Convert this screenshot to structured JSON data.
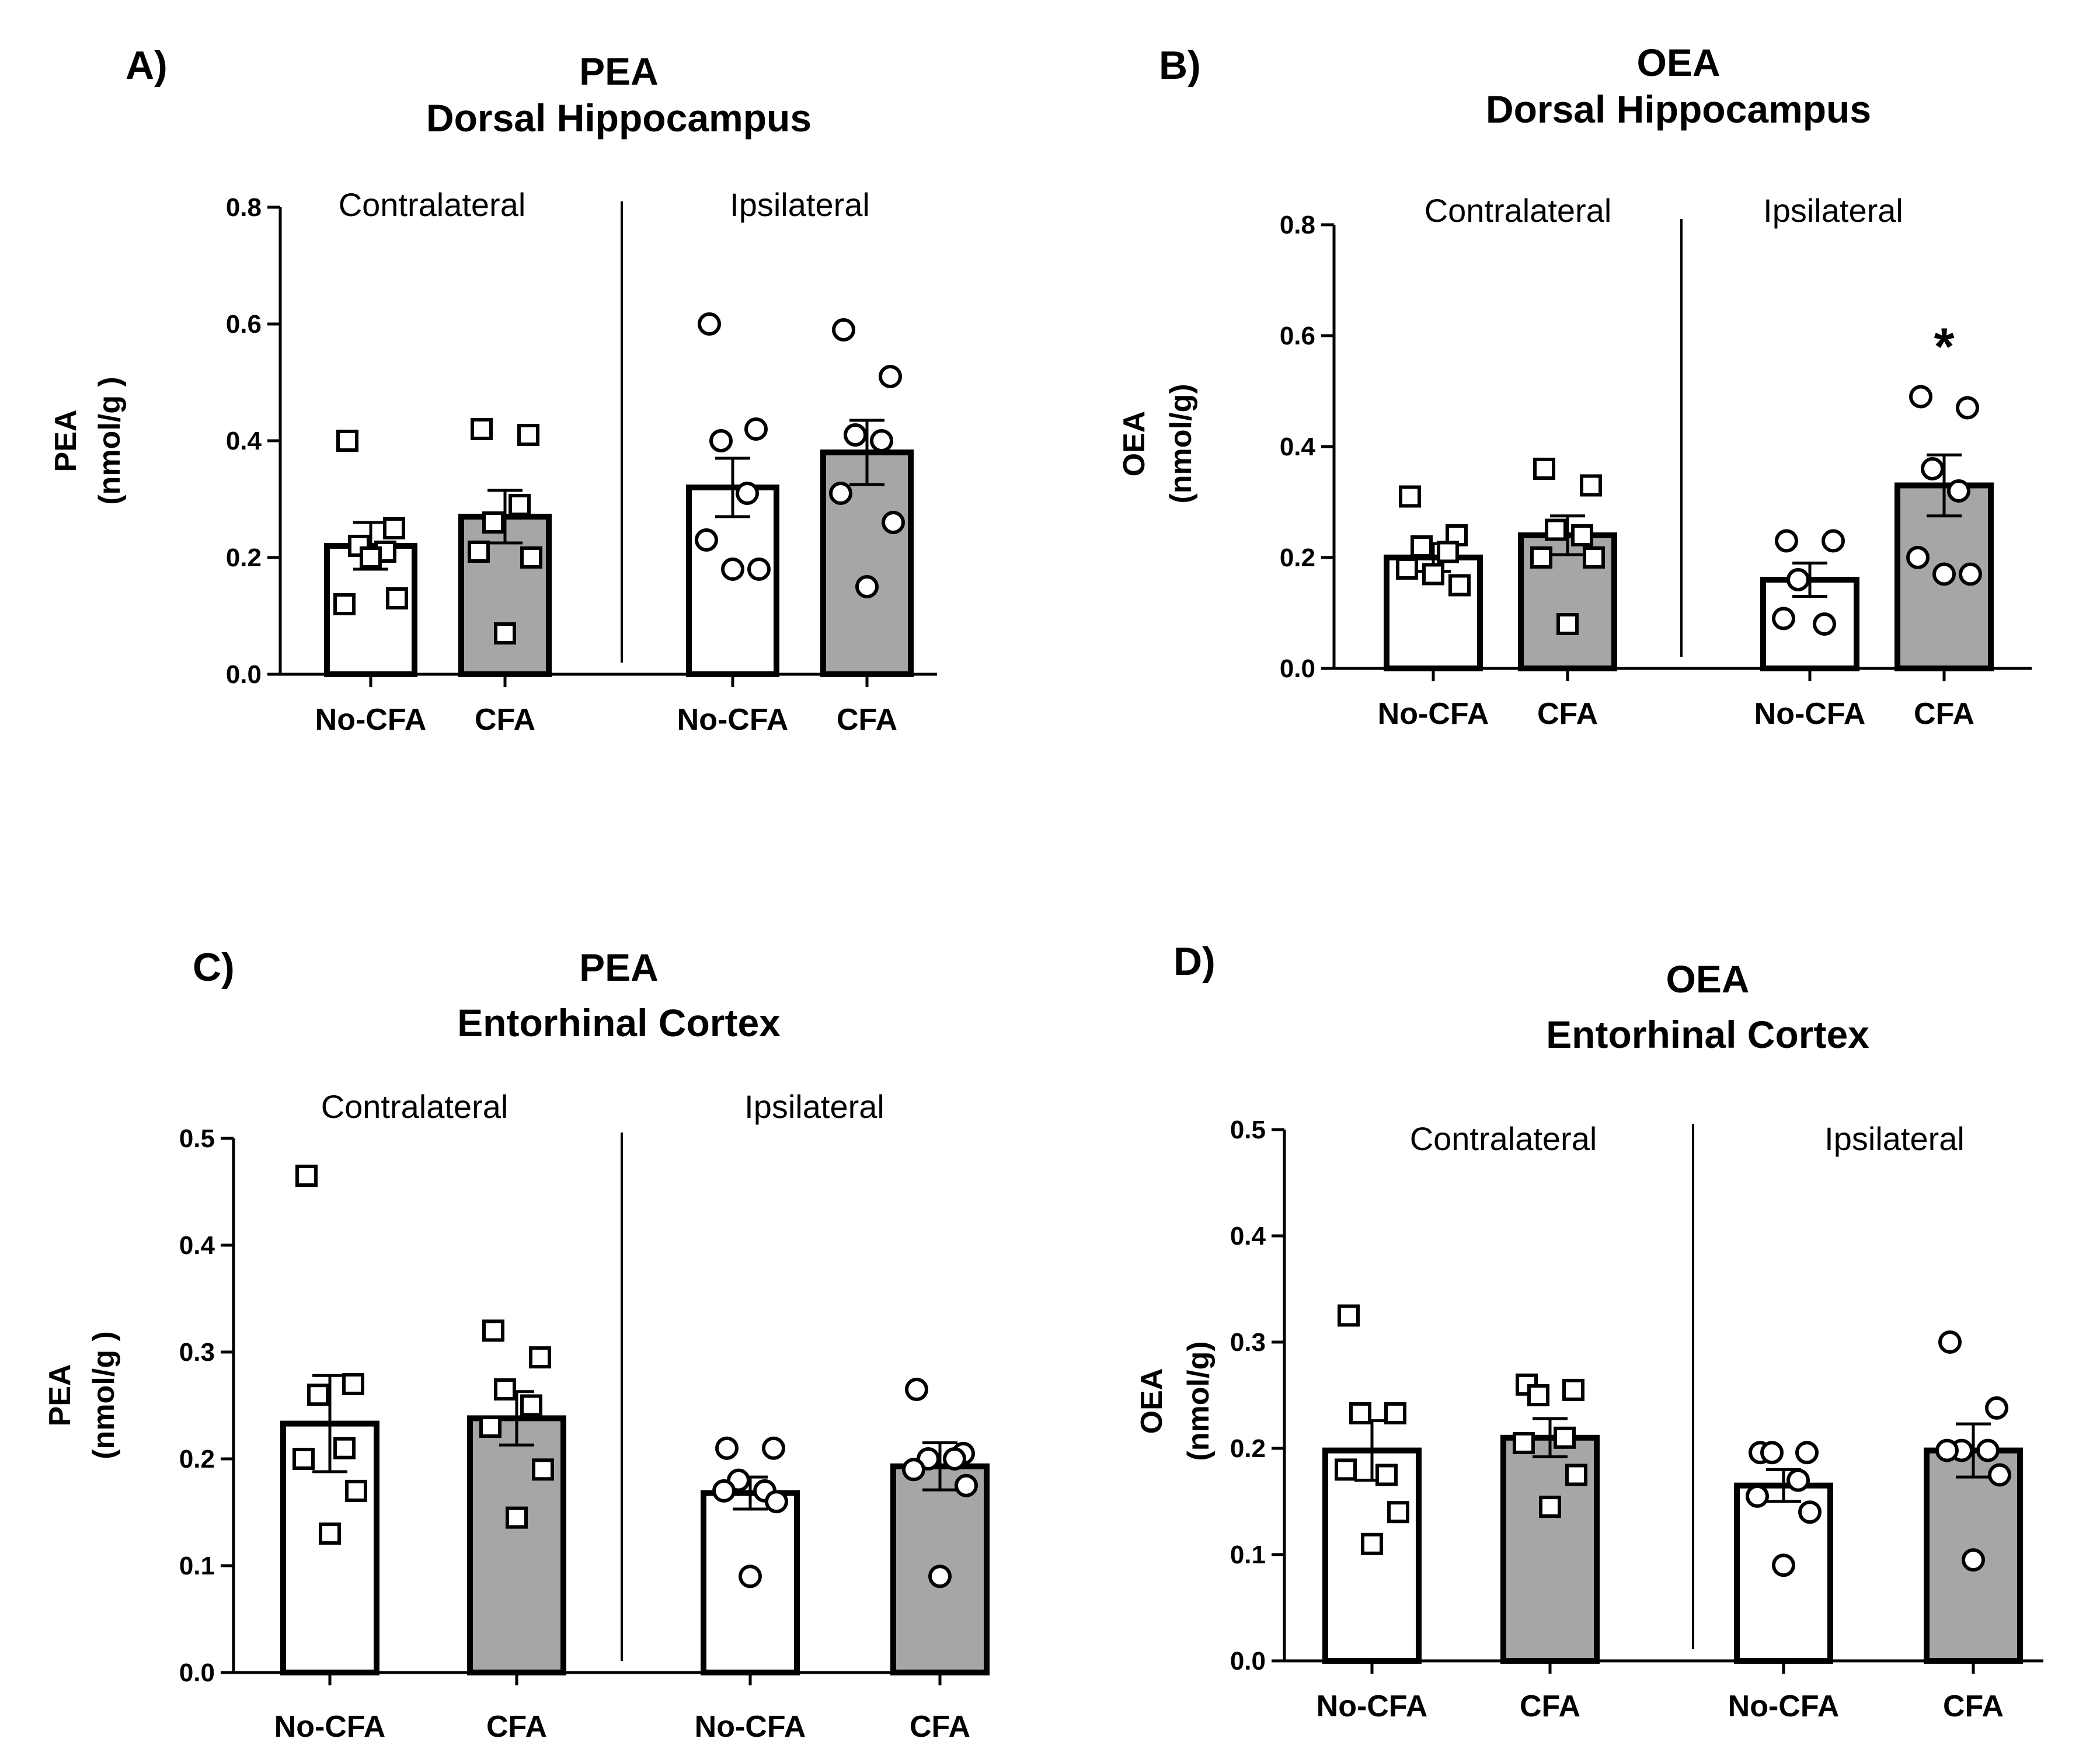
{
  "chart_data": [
    {
      "panel": "A)",
      "type": "bar",
      "title": [
        "PEA",
        "Dorsal Hippocampus"
      ],
      "ylabel": [
        "PEA",
        "(nmol/g )"
      ],
      "ylim": [
        0,
        0.8
      ],
      "yticks": [
        "0.0",
        "0.2",
        "0.4",
        "0.6",
        "0.8"
      ],
      "groups": [
        {
          "label": "Contralateral",
          "bars": [
            {
              "category": "No-CFA",
              "mean": 0.22,
              "sem": 0.04,
              "fill": "#ffffff",
              "marker": "square",
              "points": [
                0.4,
                0.25,
                0.22,
                0.21,
                0.12,
                0.13,
                0.2
              ]
            },
            {
              "category": "CFA",
              "mean": 0.27,
              "sem": 0.045,
              "fill": "#a6a6a6",
              "marker": "square",
              "points": [
                0.42,
                0.41,
                0.26,
                0.29,
                0.21,
                0.2,
                0.07
              ]
            }
          ]
        },
        {
          "label": "Ipsilateral",
          "bars": [
            {
              "category": "No-CFA",
              "mean": 0.32,
              "sem": 0.05,
              "fill": "#ffffff",
              "marker": "circle",
              "points": [
                0.6,
                0.42,
                0.4,
                0.31,
                0.23,
                0.18,
                0.18
              ]
            },
            {
              "category": "CFA",
              "mean": 0.38,
              "sem": 0.055,
              "fill": "#a6a6a6",
              "marker": "circle",
              "points": [
                0.59,
                0.51,
                0.41,
                0.4,
                0.31,
                0.26,
                0.15
              ]
            }
          ]
        }
      ]
    },
    {
      "panel": "B)",
      "type": "bar",
      "title": [
        "OEA",
        "Dorsal Hippocampus"
      ],
      "ylabel": [
        "OEA",
        "(nmol/g)"
      ],
      "ylim": [
        0,
        0.8
      ],
      "yticks": [
        "0.0",
        "0.2",
        "0.4",
        "0.6",
        "0.8"
      ],
      "groups": [
        {
          "label": "Contralateral",
          "bars": [
            {
              "category": "No-CFA",
              "mean": 0.2,
              "sem": 0.025,
              "fill": "#ffffff",
              "marker": "square",
              "points": [
                0.31,
                0.24,
                0.22,
                0.21,
                0.18,
                0.15,
                0.17
              ]
            },
            {
              "category": "CFA",
              "mean": 0.24,
              "sem": 0.035,
              "fill": "#a6a6a6",
              "marker": "square",
              "points": [
                0.36,
                0.33,
                0.25,
                0.24,
                0.2,
                0.2,
                0.08
              ]
            }
          ]
        },
        {
          "label": "Ipsilateral",
          "bars": [
            {
              "category": "No-CFA",
              "mean": 0.16,
              "sem": 0.03,
              "fill": "#ffffff",
              "marker": "circle",
              "points": [
                0.23,
                0.23,
                0.16,
                0.08,
                0.09
              ]
            },
            {
              "category": "CFA",
              "mean": 0.33,
              "sem": 0.055,
              "fill": "#a6a6a6",
              "marker": "circle",
              "points": [
                0.49,
                0.47,
                0.36,
                0.32,
                0.2,
                0.17,
                0.17
              ],
              "annotation": "*"
            }
          ]
        }
      ]
    },
    {
      "panel": "C)",
      "type": "bar",
      "title": [
        "PEA",
        "Entorhinal Cortex"
      ],
      "ylabel": [
        "PEA",
        "(nmol/g )"
      ],
      "ylim": [
        0,
        0.5
      ],
      "yticks": [
        "0.0",
        "0.1",
        "0.2",
        "0.3",
        "0.4",
        "0.5"
      ],
      "groups": [
        {
          "label": "Contralateral",
          "bars": [
            {
              "category": "No-CFA",
              "mean": 0.233,
              "sem": 0.045,
              "fill": "#ffffff",
              "marker": "square",
              "points": [
                0.465,
                0.27,
                0.26,
                0.21,
                0.2,
                0.17,
                0.13
              ]
            },
            {
              "category": "CFA",
              "mean": 0.238,
              "sem": 0.025,
              "fill": "#a6a6a6",
              "marker": "square",
              "points": [
                0.32,
                0.295,
                0.265,
                0.25,
                0.23,
                0.19,
                0.145
              ]
            }
          ]
        },
        {
          "label": "Ipsilateral",
          "bars": [
            {
              "category": "No-CFA",
              "mean": 0.168,
              "sem": 0.015,
              "fill": "#ffffff",
              "marker": "circle",
              "points": [
                0.21,
                0.21,
                0.18,
                0.17,
                0.17,
                0.16,
                0.09
              ]
            },
            {
              "category": "CFA",
              "mean": 0.193,
              "sem": 0.022,
              "fill": "#a6a6a6",
              "marker": "circle",
              "points": [
                0.265,
                0.205,
                0.2,
                0.2,
                0.19,
                0.175,
                0.09
              ]
            }
          ]
        }
      ]
    },
    {
      "panel": "D)",
      "type": "bar",
      "title": [
        "OEA",
        "Entorhinal Cortex"
      ],
      "ylabel": [
        "OEA",
        "(nmol/g)"
      ],
      "ylim": [
        0,
        0.5
      ],
      "yticks": [
        "0.0",
        "0.1",
        "0.2",
        "0.3",
        "0.4",
        "0.5"
      ],
      "groups": [
        {
          "label": "Contralateral",
          "bars": [
            {
              "category": "No-CFA",
              "mean": 0.198,
              "sem": 0.028,
              "fill": "#ffffff",
              "marker": "square",
              "points": [
                0.325,
                0.233,
                0.233,
                0.175,
                0.18,
                0.14,
                0.11
              ]
            },
            {
              "category": "CFA",
              "mean": 0.21,
              "sem": 0.018,
              "fill": "#a6a6a6",
              "marker": "square",
              "points": [
                0.26,
                0.255,
                0.25,
                0.21,
                0.205,
                0.175,
                0.145
              ]
            }
          ]
        },
        {
          "label": "Ipsilateral",
          "bars": [
            {
              "category": "No-CFA",
              "mean": 0.165,
              "sem": 0.015,
              "fill": "#ffffff",
              "marker": "circle",
              "points": [
                0.196,
                0.196,
                0.196,
                0.17,
                0.155,
                0.14,
                0.09
              ]
            },
            {
              "category": "CFA",
              "mean": 0.198,
              "sem": 0.025,
              "fill": "#a6a6a6",
              "marker": "circle",
              "points": [
                0.3,
                0.238,
                0.198,
                0.198,
                0.198,
                0.175,
                0.095
              ]
            }
          ]
        }
      ]
    }
  ]
}
